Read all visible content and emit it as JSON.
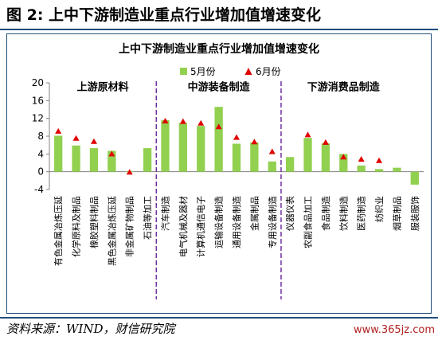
{
  "figure": {
    "title": "图 2:  上中下游制造业重点行业增加值增速变化",
    "source": "资料来源：WIND，财信研究院",
    "watermark": "www.365jz.com"
  },
  "colors": {
    "bar": "#92d050",
    "marker": "#e00000",
    "divider": "#7030a0",
    "border": "#1f4e79"
  },
  "chart_data": {
    "type": "bar",
    "title": "上中下游制造业重点行业增加值增速变化",
    "legend": {
      "placement": "top-center",
      "bar_label": "5月份",
      "marker_label": "6月份"
    },
    "ylim": [
      -4,
      20
    ],
    "yticks": [
      -4,
      0,
      4,
      8,
      12,
      16,
      20
    ],
    "grid": false,
    "groups": [
      {
        "label": "上游原材料",
        "start": 0,
        "end": 5
      },
      {
        "label": "中游装备制造",
        "start": 6,
        "end": 12
      },
      {
        "label": "下游消费品制造",
        "start": 13,
        "end": 19
      }
    ],
    "categories": [
      "有色金属冶炼压延",
      "化学原料及制品",
      "橡胶塑料制品",
      "黑色金属冶炼压延",
      "非金属矿物制品",
      "石油等加工",
      "汽车制造",
      "电气机械及器材",
      "计算机通信电子",
      "运输设备制造",
      "通用设备制造",
      "金属制品",
      "专用设备制造",
      "仪器仪表",
      "农副食品加工",
      "食品制造",
      "饮料制造",
      "医药制造",
      "纺织业",
      "烟草制品",
      "服装服饰"
    ],
    "series": [
      {
        "name": "5月份",
        "kind": "bar",
        "values": [
          8.1,
          5.9,
          5.3,
          4.7,
          0.1,
          5.3,
          11.6,
          11.0,
          10.3,
          14.6,
          6.3,
          6.6,
          2.3,
          3.3,
          7.6,
          6.4,
          4.0,
          1.4,
          0.6,
          0.9,
          -2.9
        ]
      },
      {
        "name": "6月份",
        "kind": "marker",
        "values": [
          9.1,
          7.5,
          6.8,
          4.0,
          -0.1,
          null,
          11.4,
          11.3,
          10.9,
          10.1,
          7.7,
          6.7,
          4.5,
          null,
          8.3,
          6.6,
          3.3,
          2.8,
          2.5,
          null,
          null
        ]
      }
    ]
  }
}
